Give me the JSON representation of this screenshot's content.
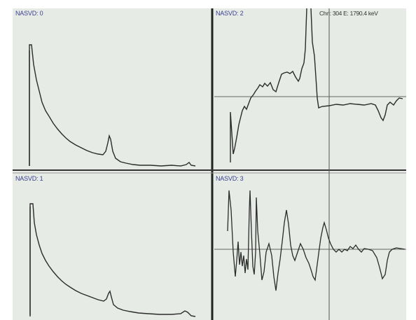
{
  "panels": [
    {
      "label": "NASVD: 0"
    },
    {
      "label": "NASVD: 2"
    },
    {
      "label": "NASVD: 1"
    },
    {
      "label": "NASVD: 3"
    }
  ],
  "cursor_readout": "Chn: 304 E: 1790.4 keV",
  "colors": {
    "background": "#e6ebe6",
    "trace": "#2b2b2b",
    "divider": "#222222",
    "axis": "#666666",
    "label": "#3a3f8f"
  }
}
